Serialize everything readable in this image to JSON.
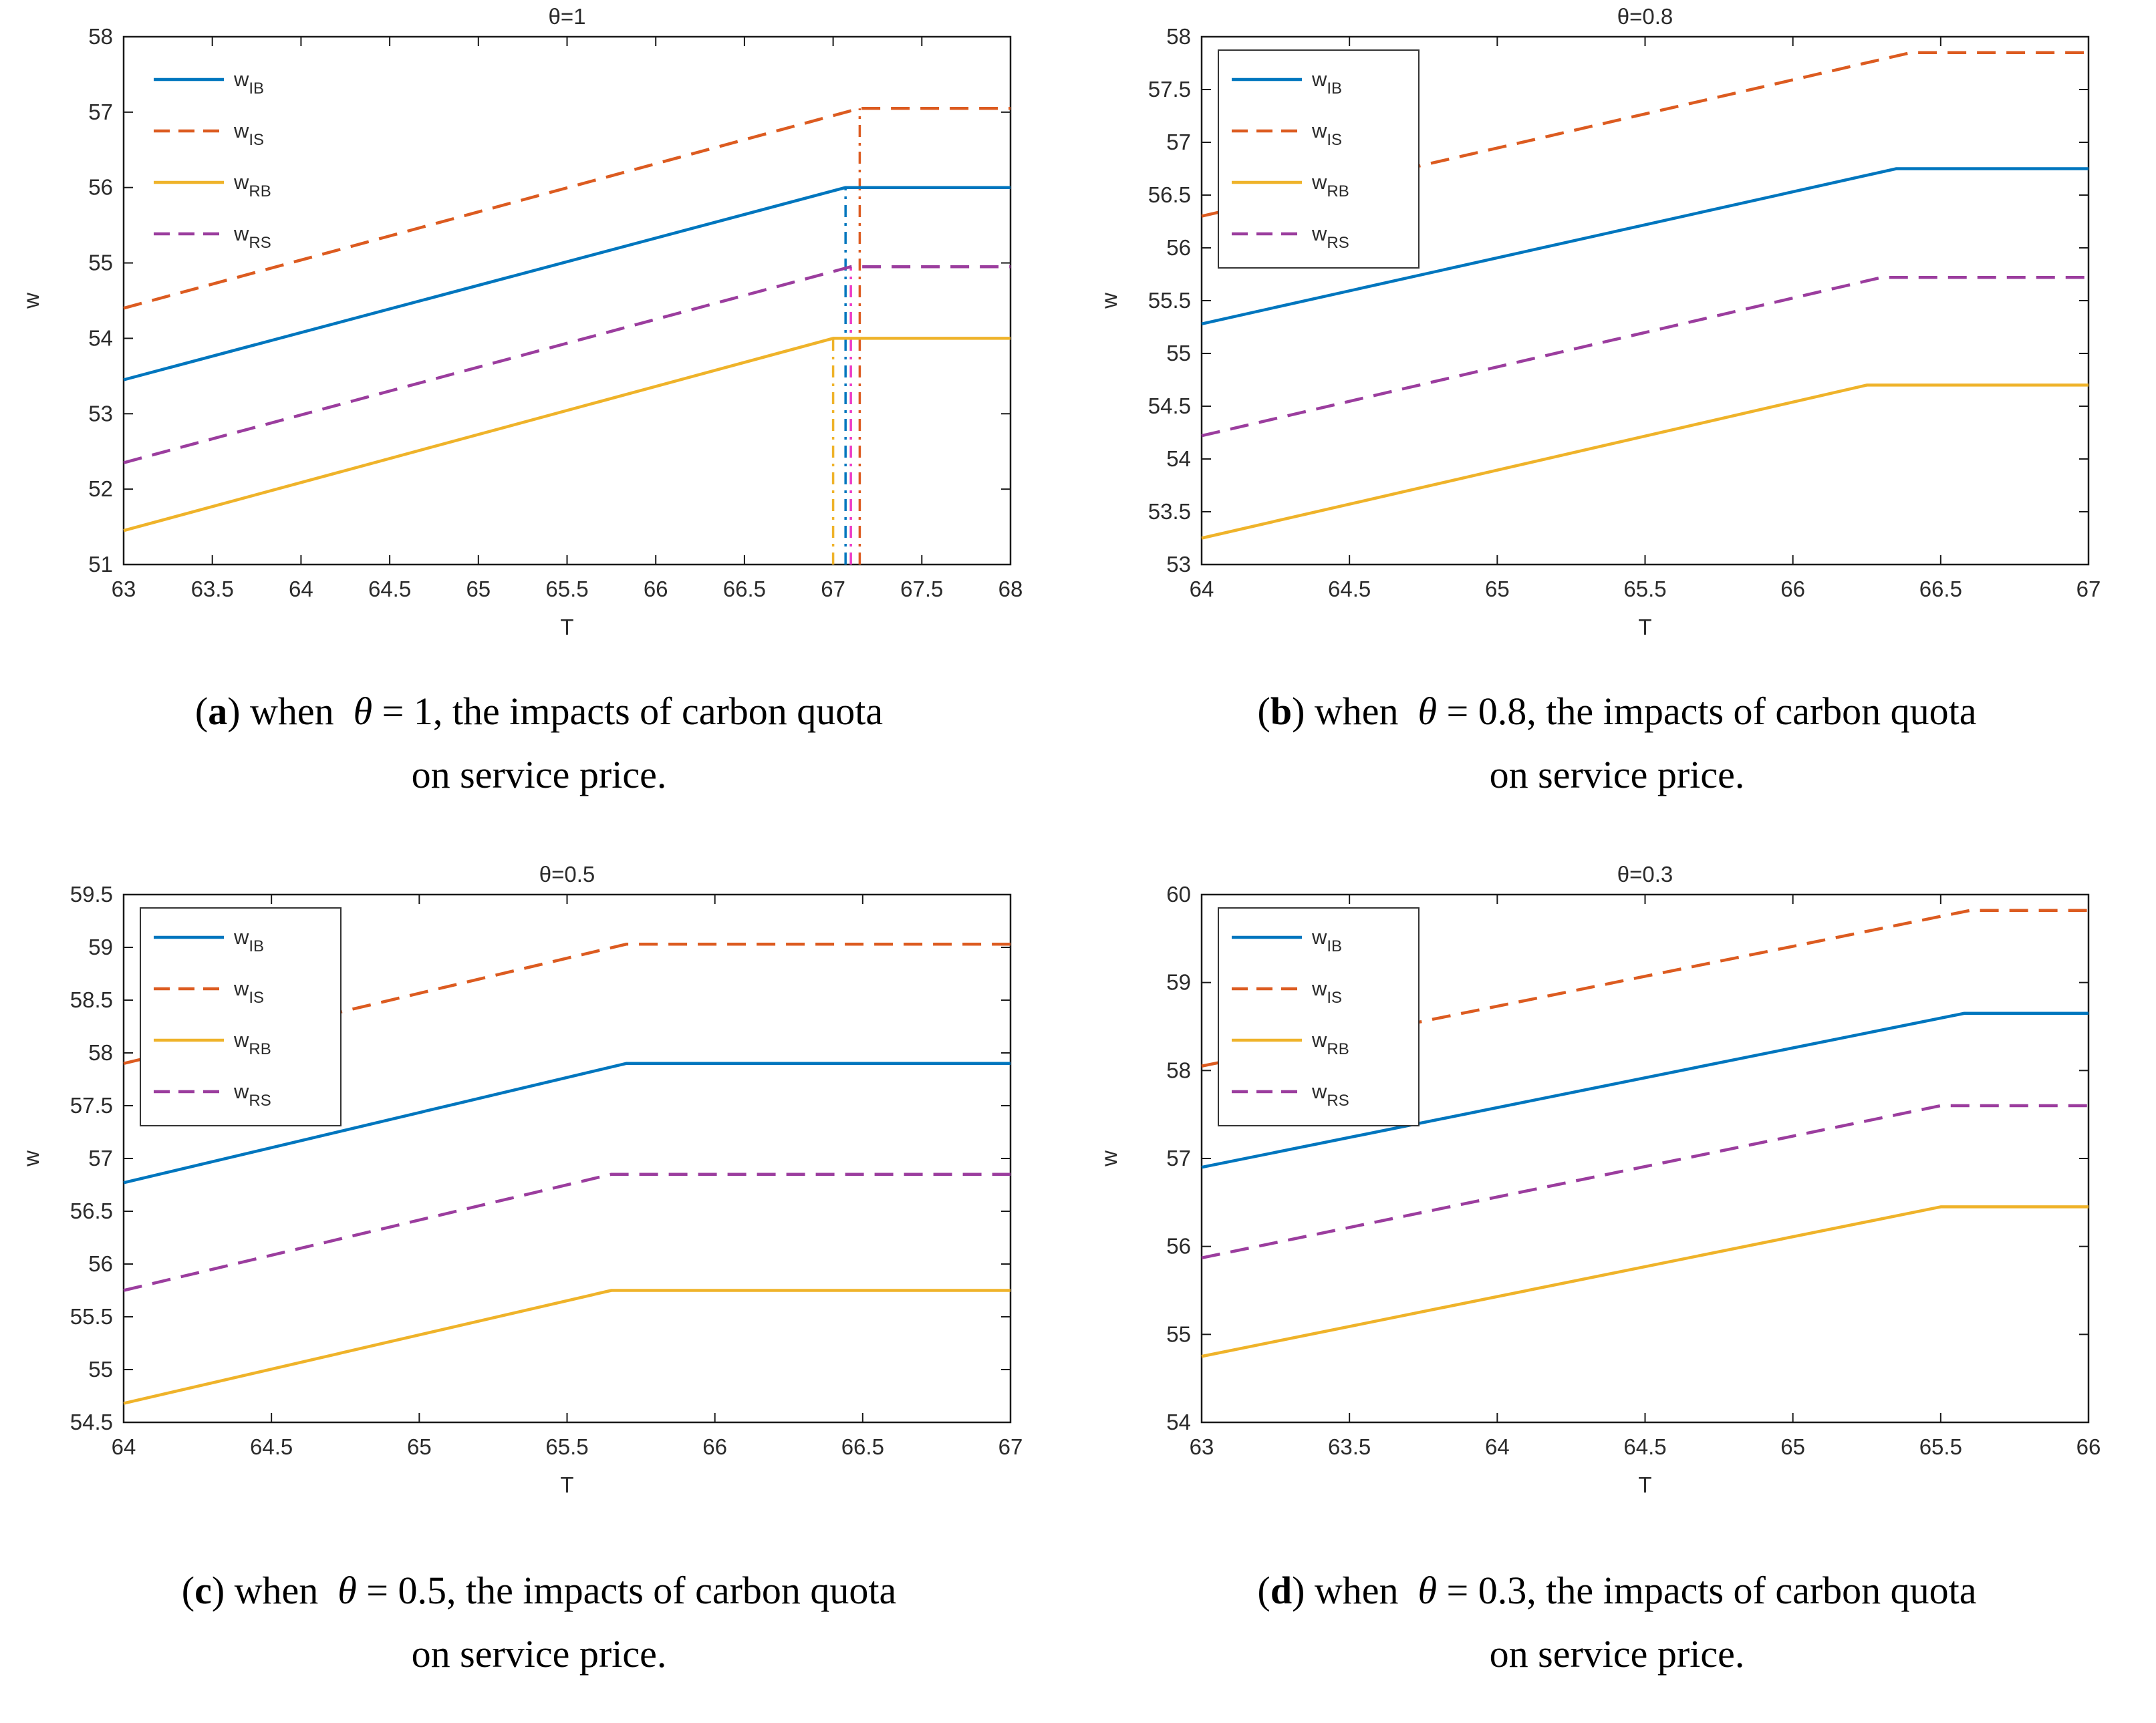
{
  "chart_data": {
    "panels": [
      {
        "id": "a",
        "type": "line",
        "title": "θ=1",
        "xlabel": "T",
        "ylabel": "w",
        "xlim": [
          63,
          68
        ],
        "xtick_step": 0.5,
        "ylim": [
          51,
          58
        ],
        "ytick_step": 1,
        "legend_box": false,
        "series": [
          {
            "name": "w",
            "sub": "IB",
            "color": "#0076BE",
            "style": "solid",
            "points": [
              [
                63,
                53.45
              ],
              [
                67.07,
                56.0
              ],
              [
                68,
                56.0
              ]
            ]
          },
          {
            "name": "w",
            "sub": "IS",
            "color": "#DC5B20",
            "style": "dashed",
            "points": [
              [
                63,
                54.4
              ],
              [
                67.15,
                57.05
              ],
              [
                68,
                57.05
              ]
            ]
          },
          {
            "name": "w",
            "sub": "RB",
            "color": "#EFB32A",
            "style": "solid",
            "points": [
              [
                63,
                51.45
              ],
              [
                67.0,
                54.0
              ],
              [
                68,
                54.0
              ]
            ]
          },
          {
            "name": "w",
            "sub": "RS",
            "color": "#9B3D9E",
            "style": "dashed",
            "points": [
              [
                63,
                52.35
              ],
              [
                67.1,
                54.95
              ],
              [
                68,
                54.95
              ]
            ]
          }
        ],
        "vlines": [
          {
            "x": 67.0,
            "ytop": 54.0,
            "color": "#EFB32A"
          },
          {
            "x": 67.07,
            "ytop": 56.0,
            "color": "#0076BE"
          },
          {
            "x": 67.1,
            "ytop": 54.95,
            "color": "#EC3BC6"
          },
          {
            "x": 67.15,
            "ytop": 57.05,
            "color": "#DC5B20"
          }
        ],
        "caption": {
          "letter": "a",
          "before_theta": "when",
          "theta": "θ",
          "after_theta": "= 1, the impacts of carbon quota",
          "line2": "on service price."
        }
      },
      {
        "id": "b",
        "type": "line",
        "title": "θ=0.8",
        "xlabel": "T",
        "ylabel": "w",
        "xlim": [
          64,
          67
        ],
        "xtick_step": 0.5,
        "ylim": [
          53,
          58
        ],
        "ytick_step": 0.5,
        "legend_box": true,
        "series": [
          {
            "name": "w",
            "sub": "IB",
            "color": "#0076BE",
            "style": "solid",
            "points": [
              [
                64,
                55.28
              ],
              [
                66.35,
                56.75
              ],
              [
                67,
                56.75
              ]
            ]
          },
          {
            "name": "w",
            "sub": "IS",
            "color": "#DC5B20",
            "style": "dashed",
            "points": [
              [
                64,
                56.3
              ],
              [
                66.4,
                57.85
              ],
              [
                67,
                57.85
              ]
            ]
          },
          {
            "name": "w",
            "sub": "RB",
            "color": "#EFB32A",
            "style": "solid",
            "points": [
              [
                64,
                53.25
              ],
              [
                66.25,
                54.7
              ],
              [
                67,
                54.7
              ]
            ]
          },
          {
            "name": "w",
            "sub": "RS",
            "color": "#9B3D9E",
            "style": "dashed",
            "points": [
              [
                64,
                54.22
              ],
              [
                66.3,
                55.72
              ],
              [
                67,
                55.72
              ]
            ]
          }
        ],
        "vlines": [],
        "caption": {
          "letter": "b",
          "before_theta": "when",
          "theta": "θ",
          "after_theta": "= 0.8, the impacts of carbon quota",
          "line2": "on service price."
        }
      },
      {
        "id": "c",
        "type": "line",
        "title": "θ=0.5",
        "xlabel": "T",
        "ylabel": "w",
        "xlim": [
          64,
          67
        ],
        "xtick_step": 0.5,
        "ylim": [
          54.5,
          59.5
        ],
        "ytick_step": 0.5,
        "legend_box": true,
        "series": [
          {
            "name": "w",
            "sub": "IB",
            "color": "#0076BE",
            "style": "solid",
            "points": [
              [
                64,
                56.77
              ],
              [
                65.7,
                57.9
              ],
              [
                67,
                57.9
              ]
            ]
          },
          {
            "name": "w",
            "sub": "IS",
            "color": "#DC5B20",
            "style": "dashed",
            "points": [
              [
                64,
                57.9
              ],
              [
                65.7,
                59.03
              ],
              [
                67,
                59.03
              ]
            ]
          },
          {
            "name": "w",
            "sub": "RB",
            "color": "#EFB32A",
            "style": "solid",
            "points": [
              [
                64,
                54.68
              ],
              [
                65.65,
                55.75
              ],
              [
                67,
                55.75
              ]
            ]
          },
          {
            "name": "w",
            "sub": "RS",
            "color": "#9B3D9E",
            "style": "dashed",
            "points": [
              [
                64,
                55.75
              ],
              [
                65.65,
                56.85
              ],
              [
                67,
                56.85
              ]
            ]
          }
        ],
        "vlines": [],
        "caption": {
          "letter": "c",
          "before_theta": "when",
          "theta": "θ",
          "after_theta": "= 0.5, the impacts of carbon quota",
          "line2": "on service price."
        }
      },
      {
        "id": "d",
        "type": "line",
        "title": "θ=0.3",
        "xlabel": "T",
        "ylabel": "w",
        "xlim": [
          63,
          66
        ],
        "xtick_step": 0.5,
        "ylim": [
          54,
          60
        ],
        "ytick_step": 1,
        "legend_box": true,
        "series": [
          {
            "name": "w",
            "sub": "IB",
            "color": "#0076BE",
            "style": "solid",
            "points": [
              [
                63,
                56.9
              ],
              [
                65.58,
                58.65
              ],
              [
                66,
                58.65
              ]
            ]
          },
          {
            "name": "w",
            "sub": "IS",
            "color": "#DC5B20",
            "style": "dashed",
            "points": [
              [
                63,
                58.05
              ],
              [
                65.6,
                59.82
              ],
              [
                66,
                59.82
              ]
            ]
          },
          {
            "name": "w",
            "sub": "RB",
            "color": "#EFB32A",
            "style": "solid",
            "points": [
              [
                63,
                54.75
              ],
              [
                65.5,
                56.45
              ],
              [
                66,
                56.45
              ]
            ]
          },
          {
            "name": "w",
            "sub": "RS",
            "color": "#9B3D9E",
            "style": "dashed",
            "points": [
              [
                63,
                55.87
              ],
              [
                65.5,
                57.6
              ],
              [
                66,
                57.6
              ]
            ]
          }
        ],
        "vlines": [],
        "caption": {
          "letter": "d",
          "before_theta": "when",
          "theta": "θ",
          "after_theta": "= 0.3, the impacts of carbon quota",
          "line2": "on service price."
        }
      }
    ]
  }
}
